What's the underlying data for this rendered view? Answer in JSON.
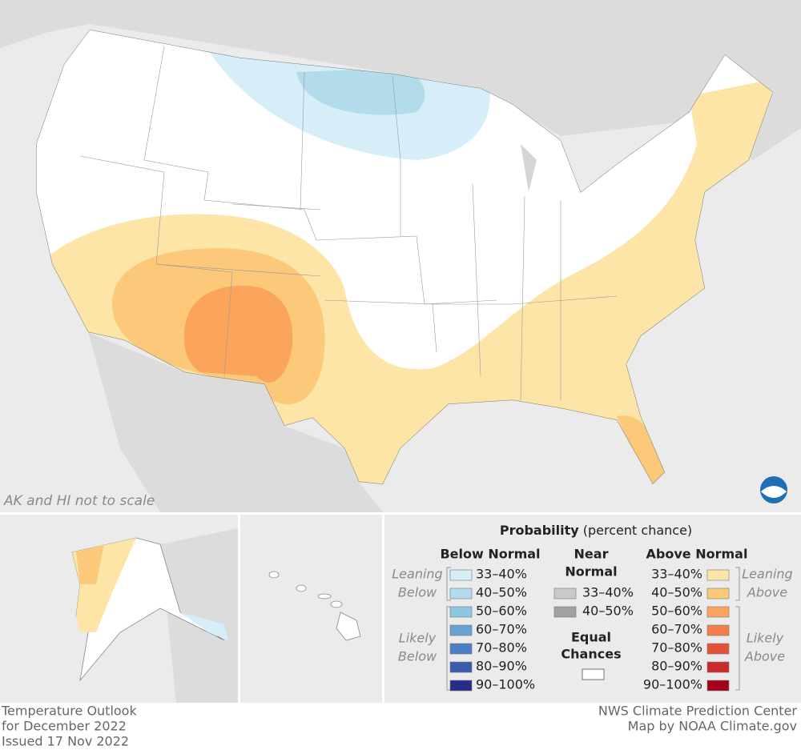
{
  "map": {
    "note": "AK and HI not to scale"
  },
  "legend": {
    "title": "Probability",
    "subtitle": "(percent chance)",
    "below": {
      "heading": "Below Normal",
      "leaning": [
        "Leaning",
        "Below"
      ],
      "likely": [
        "Likely",
        "Below"
      ],
      "bins": [
        {
          "label": "33–40%",
          "color": "#d5eef7"
        },
        {
          "label": "40–50%",
          "color": "#b2dcec"
        },
        {
          "label": "50–60%",
          "color": "#8dc8e2"
        },
        {
          "label": "60–70%",
          "color": "#68a4d3"
        },
        {
          "label": "70–80%",
          "color": "#4b7fc3"
        },
        {
          "label": "80–90%",
          "color": "#3a5aae"
        },
        {
          "label": "90–100%",
          "color": "#2a2c8c"
        }
      ]
    },
    "near": {
      "heading": [
        "Near",
        "Normal"
      ],
      "bins": [
        {
          "label": "33–40%",
          "color": "#c9c9c9"
        },
        {
          "label": "40–50%",
          "color": "#a1a1a1"
        }
      ]
    },
    "equal": {
      "heading": [
        "Equal",
        "Chances"
      ],
      "color": "#ffffff"
    },
    "above": {
      "heading": "Above Normal",
      "leaning": [
        "Leaning",
        "Above"
      ],
      "likely": [
        "Likely",
        "Above"
      ],
      "bins": [
        {
          "label": "33–40%",
          "color": "#fde5a8"
        },
        {
          "label": "40–50%",
          "color": "#fcc87a"
        },
        {
          "label": "50–60%",
          "color": "#fba45c"
        },
        {
          "label": "60–70%",
          "color": "#f47e4a"
        },
        {
          "label": "70–80%",
          "color": "#e6503a"
        },
        {
          "label": "80–90%",
          "color": "#cc2a2a"
        },
        {
          "label": "90–100%",
          "color": "#a3001c"
        }
      ]
    }
  },
  "footer": {
    "left": [
      "Temperature Outlook",
      "for December 2022",
      "Issued 17 Nov 2022"
    ],
    "right": [
      "NWS Climate Prediction Center",
      "Map by NOAA Climate.gov"
    ]
  }
}
